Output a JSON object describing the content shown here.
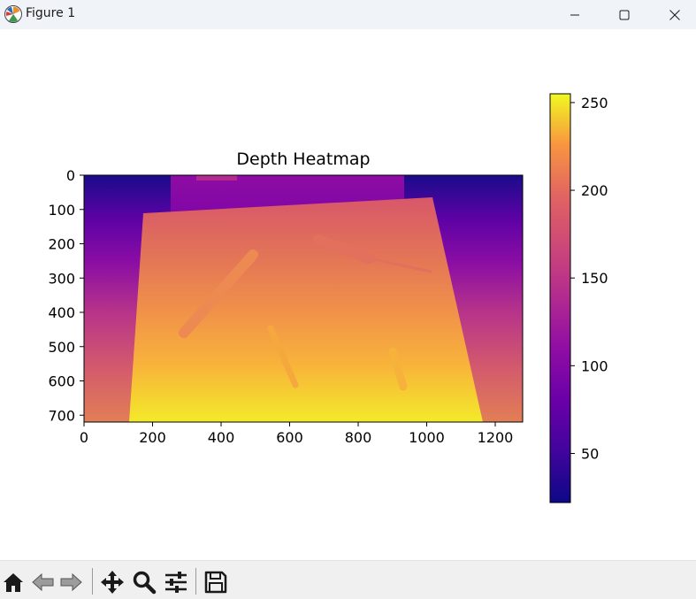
{
  "window": {
    "title": "Figure 1",
    "controls": [
      "minimize",
      "maximize",
      "close"
    ]
  },
  "toolbar": {
    "buttons": [
      {
        "name": "home",
        "icon": "home-icon"
      },
      {
        "name": "back",
        "icon": "back-arrow-icon"
      },
      {
        "name": "forward",
        "icon": "forward-arrow-icon"
      },
      {
        "name": "pan",
        "icon": "move-icon"
      },
      {
        "name": "zoom",
        "icon": "zoom-icon"
      },
      {
        "name": "configure-subplots",
        "icon": "sliders-icon"
      },
      {
        "name": "save",
        "icon": "save-icon"
      }
    ]
  },
  "chart_data": {
    "type": "heatmap",
    "title": "Depth Heatmap",
    "colormap": "plasma",
    "image_size": {
      "width": 1280,
      "height": 720
    },
    "xlim": [
      0,
      1280
    ],
    "ylim": [
      720,
      0
    ],
    "xticks": [
      0,
      200,
      400,
      600,
      800,
      1000,
      1200
    ],
    "yticks": [
      0,
      100,
      200,
      300,
      400,
      500,
      600,
      700
    ],
    "colorbar": {
      "range": [
        22,
        255
      ],
      "ticks": [
        50,
        100,
        150,
        200,
        250
      ]
    },
    "regions": [
      {
        "name": "background",
        "value_top": 28,
        "value_bottom": 150
      },
      {
        "name": "upper-box",
        "value": 90
      },
      {
        "name": "table-surface",
        "value_top": 150,
        "value_bottom": 250
      },
      {
        "name": "tool-diagonal-left",
        "value": 175
      },
      {
        "name": "tool-screwdriver-top",
        "value": 160
      },
      {
        "name": "tool-center-small",
        "value": 205
      },
      {
        "name": "tool-right-small",
        "value": 210
      }
    ]
  }
}
